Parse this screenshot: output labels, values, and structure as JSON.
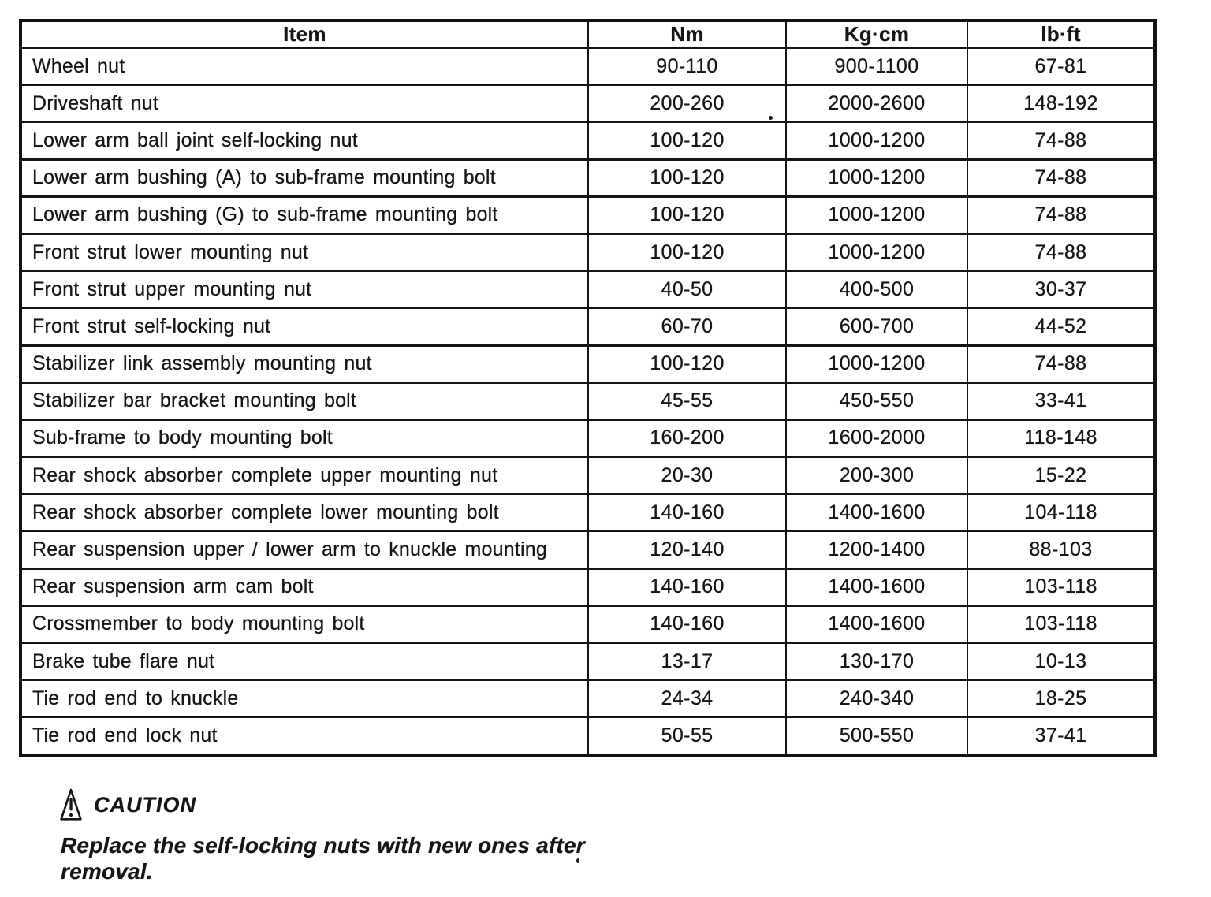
{
  "table": {
    "headers": [
      {
        "key": "item",
        "label": "Item"
      },
      {
        "key": "nm",
        "label": "Nm"
      },
      {
        "key": "kgcm",
        "label": "Kg·cm"
      },
      {
        "key": "lbft",
        "label": "lb·ft"
      }
    ],
    "rows": [
      {
        "item": "Wheel nut",
        "nm": "90-110",
        "kgcm": "900-1100",
        "lbft": "67-81"
      },
      {
        "item": "Driveshaft nut",
        "nm": "200-260",
        "kgcm": "2000-2600",
        "lbft": "148-192"
      },
      {
        "item": "Lower arm ball joint self-locking nut",
        "nm": "100-120",
        "kgcm": "1000-1200",
        "lbft": "74-88"
      },
      {
        "item": "Lower arm bushing (A) to sub-frame mounting bolt",
        "nm": "100-120",
        "kgcm": "1000-1200",
        "lbft": "74-88"
      },
      {
        "item": "Lower arm bushing (G) to sub-frame mounting bolt",
        "nm": "100-120",
        "kgcm": "1000-1200",
        "lbft": "74-88"
      },
      {
        "item": "Front strut lower mounting nut",
        "nm": "100-120",
        "kgcm": "1000-1200",
        "lbft": "74-88"
      },
      {
        "item": "Front strut upper mounting nut",
        "nm": "40-50",
        "kgcm": "400-500",
        "lbft": "30-37"
      },
      {
        "item": "Front strut self-locking nut",
        "nm": "60-70",
        "kgcm": "600-700",
        "lbft": "44-52"
      },
      {
        "item": "Stabilizer link assembly mounting nut",
        "nm": "100-120",
        "kgcm": "1000-1200",
        "lbft": "74-88"
      },
      {
        "item": "Stabilizer bar bracket mounting bolt",
        "nm": "45-55",
        "kgcm": "450-550",
        "lbft": "33-41"
      },
      {
        "item": "Sub-frame to body mounting bolt",
        "nm": "160-200",
        "kgcm": "1600-2000",
        "lbft": "118-148"
      },
      {
        "item": "Rear shock absorber complete upper mounting nut",
        "nm": "20-30",
        "kgcm": "200-300",
        "lbft": "15-22"
      },
      {
        "item": "Rear shock absorber complete lower mounting bolt",
        "nm": "140-160",
        "kgcm": "1400-1600",
        "lbft": "104-118"
      },
      {
        "item": "Rear suspension upper / lower arm to knuckle mounting",
        "nm": "120-140",
        "kgcm": "1200-1400",
        "lbft": "88-103"
      },
      {
        "item": "Rear suspension arm cam bolt",
        "nm": "140-160",
        "kgcm": "1400-1600",
        "lbft": "103-118"
      },
      {
        "item": "Crossmember to body mounting bolt",
        "nm": "140-160",
        "kgcm": "1400-1600",
        "lbft": "103-118"
      },
      {
        "item": "Brake tube flare nut",
        "nm": "13-17",
        "kgcm": "130-170",
        "lbft": "10-13"
      },
      {
        "item": "Tie rod end to knuckle",
        "nm": "24-34",
        "kgcm": "240-340",
        "lbft": "18-25"
      },
      {
        "item": "Tie rod end lock nut",
        "nm": "50-55",
        "kgcm": "500-550",
        "lbft": "37-41"
      }
    ]
  },
  "caution": {
    "label": "CAUTION",
    "icon": "warning-triangle-icon",
    "lines": [
      "Replace the self-locking nuts with new ones after",
      "removal."
    ]
  },
  "colors": {
    "ink": "#161616",
    "background": "#ffffff"
  }
}
